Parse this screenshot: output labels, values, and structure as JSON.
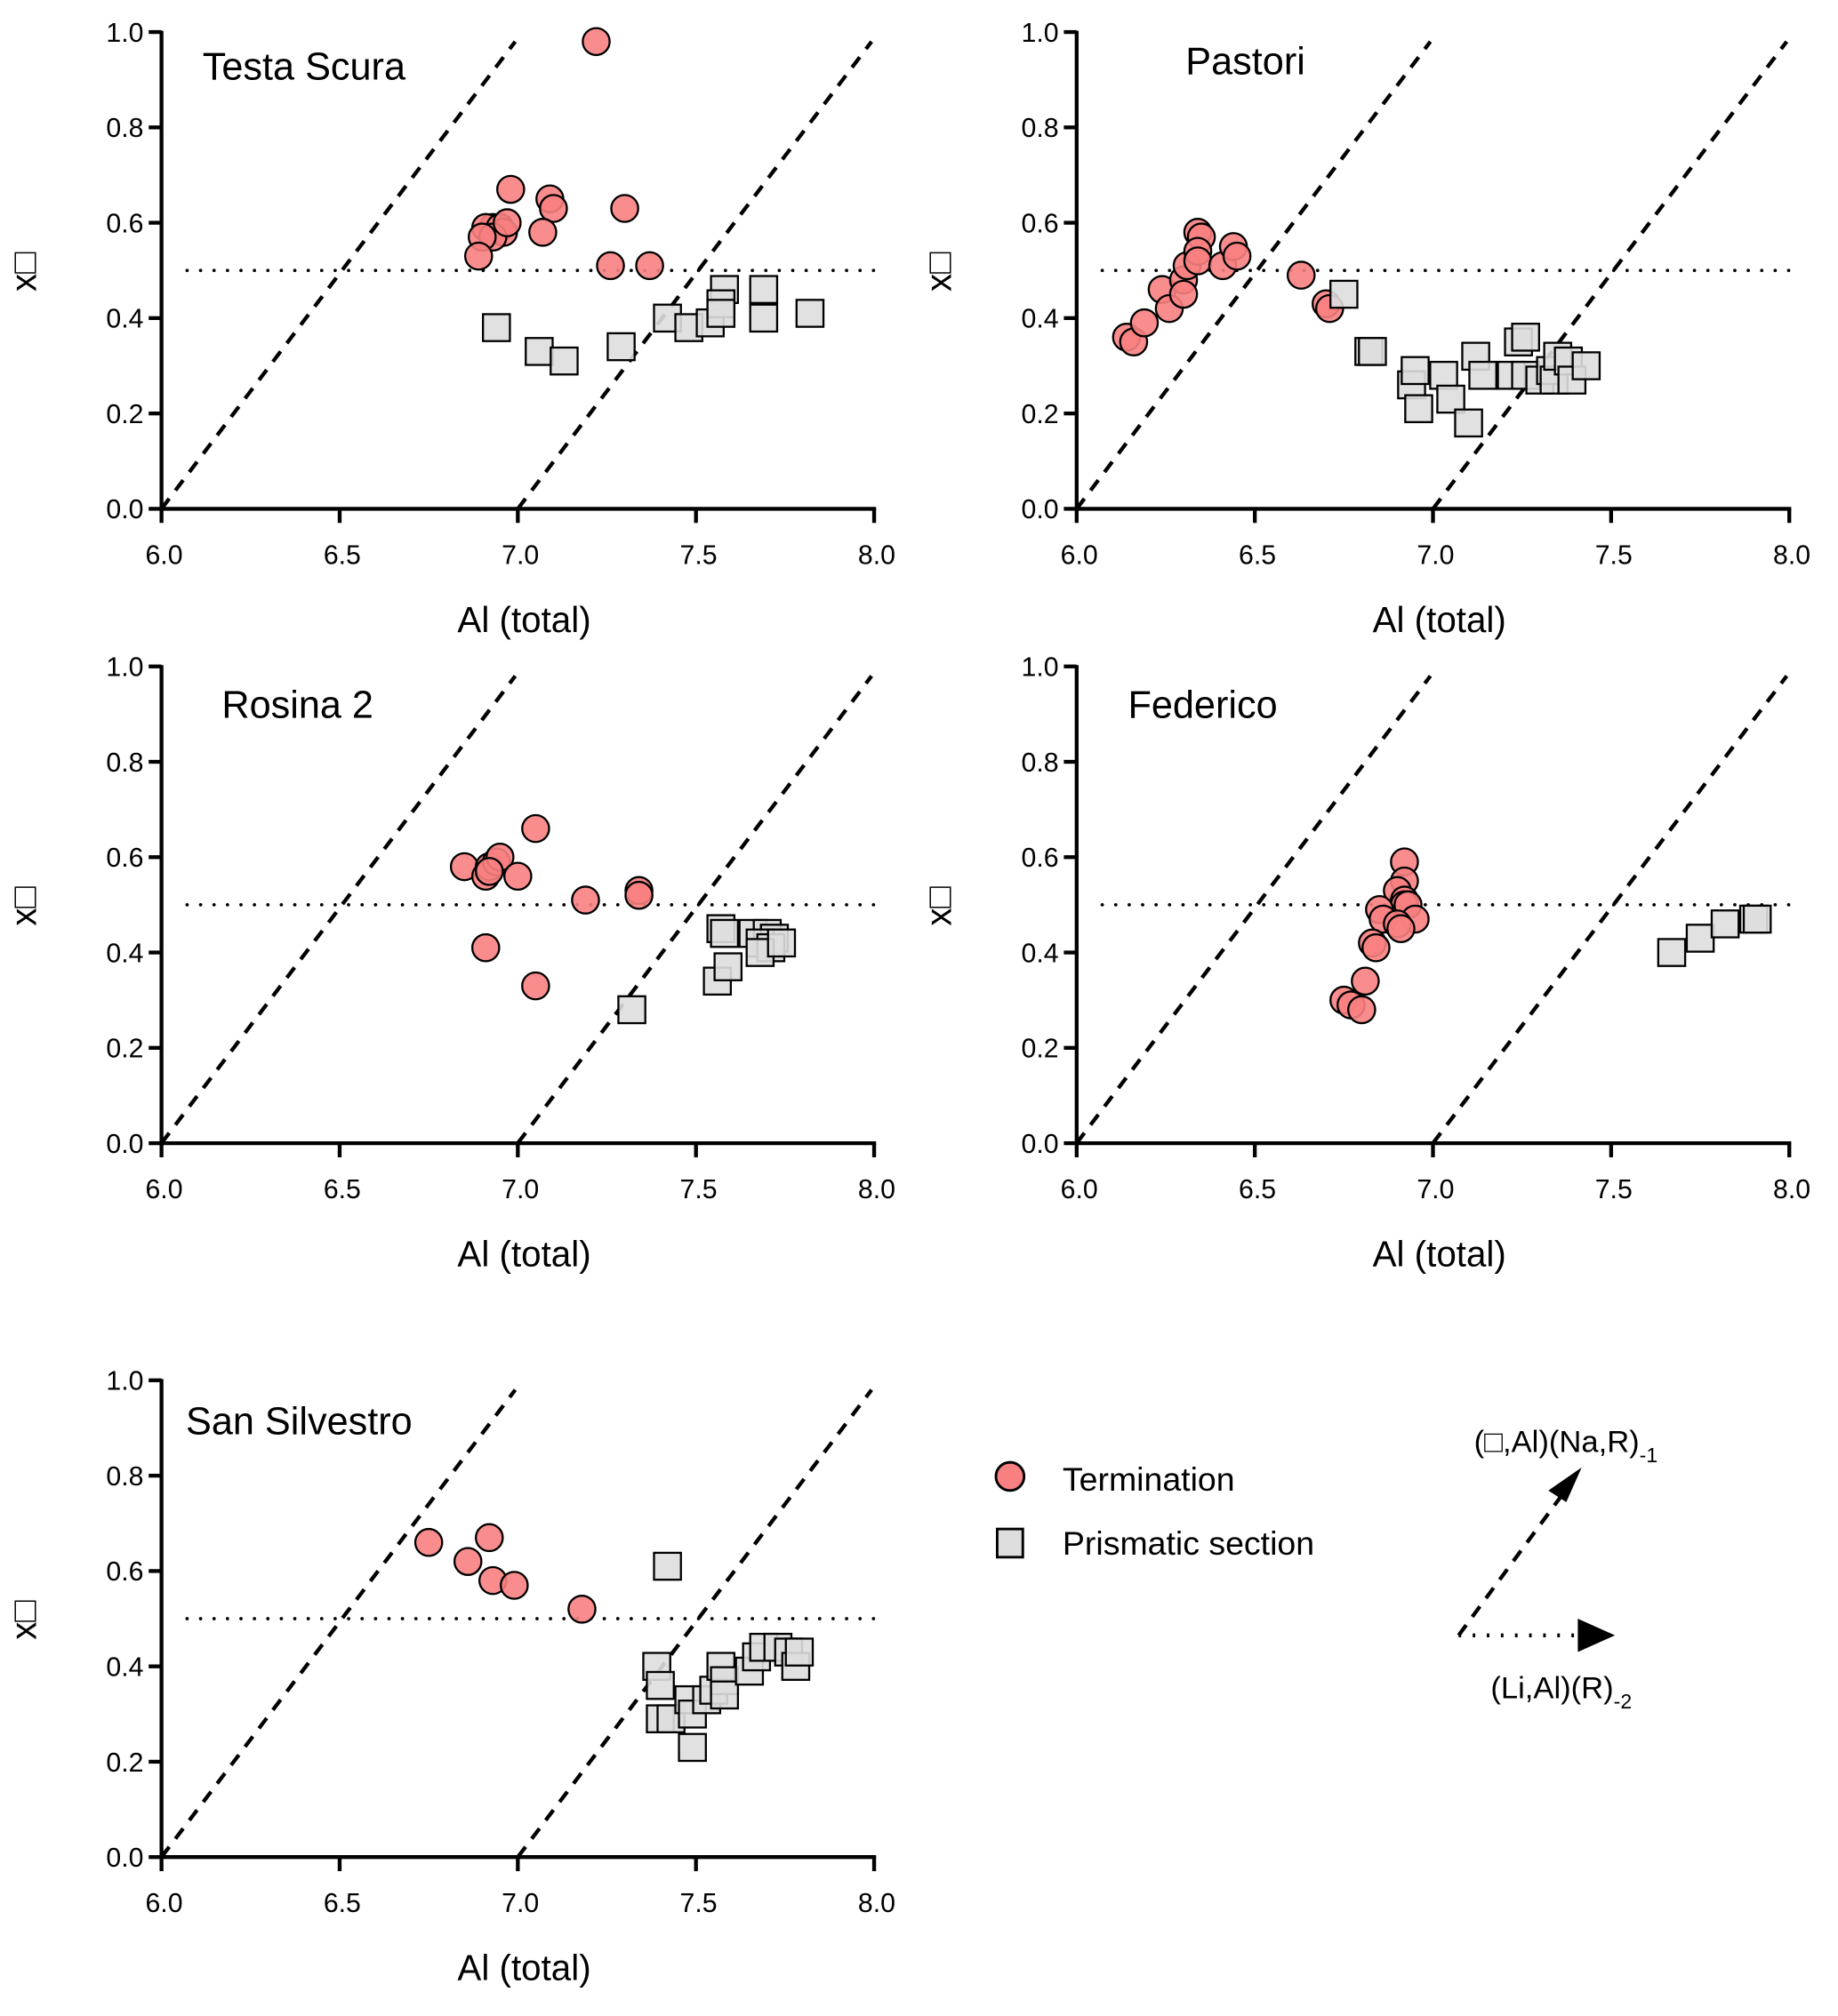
{
  "chart_data": [
    {
      "type": "scatter",
      "title": "Testa Scura",
      "xlabel": "Al (total)",
      "ylabel": "x□",
      "xlim": [
        6.0,
        8.0
      ],
      "ylim": [
        0.0,
        1.0
      ],
      "xticks": [
        "6.0",
        "6.5",
        "7.0",
        "7.5",
        "8.0"
      ],
      "yticks": [
        "0.0",
        "0.2",
        "0.4",
        "0.6",
        "0.8",
        "1.0"
      ],
      "grid": false,
      "series": [
        {
          "name": "Termination",
          "marker": "circle",
          "points": [
            [
              7.22,
              0.98
            ],
            [
              6.98,
              0.67
            ],
            [
              7.09,
              0.65
            ],
            [
              7.3,
              0.63
            ],
            [
              7.1,
              0.63
            ],
            [
              7.07,
              0.58
            ],
            [
              6.93,
              0.59
            ],
            [
              6.91,
              0.59
            ],
            [
              6.95,
              0.59
            ],
            [
              6.96,
              0.58
            ],
            [
              6.93,
              0.57
            ],
            [
              6.9,
              0.57
            ],
            [
              6.89,
              0.53
            ],
            [
              7.26,
              0.51
            ],
            [
              7.37,
              0.51
            ],
            [
              6.97,
              0.6
            ]
          ]
        },
        {
          "name": "Prismatic section",
          "marker": "square",
          "points": [
            [
              6.94,
              0.38
            ],
            [
              7.06,
              0.33
            ],
            [
              7.13,
              0.31
            ],
            [
              7.29,
              0.34
            ],
            [
              7.42,
              0.4
            ],
            [
              7.48,
              0.38
            ],
            [
              7.54,
              0.39
            ],
            [
              7.58,
              0.46
            ],
            [
              7.57,
              0.43
            ],
            [
              7.57,
              0.41
            ],
            [
              7.69,
              0.46
            ],
            [
              7.69,
              0.4
            ],
            [
              7.82,
              0.41
            ]
          ]
        }
      ]
    },
    {
      "type": "scatter",
      "title": "Pastori",
      "xlabel": "Al (total)",
      "ylabel": "x□",
      "xlim": [
        6.0,
        8.0
      ],
      "ylim": [
        0.0,
        1.0
      ],
      "xticks": [
        "6.0",
        "6.5",
        "7.0",
        "7.5",
        "8.0"
      ],
      "yticks": [
        "0.0",
        "0.2",
        "0.4",
        "0.6",
        "0.8",
        "1.0"
      ],
      "grid": false,
      "series": [
        {
          "name": "Termination",
          "marker": "circle",
          "points": [
            [
              6.14,
              0.36
            ],
            [
              6.16,
              0.35
            ],
            [
              6.19,
              0.39
            ],
            [
              6.24,
              0.46
            ],
            [
              6.26,
              0.42
            ],
            [
              6.3,
              0.48
            ],
            [
              6.3,
              0.45
            ],
            [
              6.31,
              0.51
            ],
            [
              6.34,
              0.58
            ],
            [
              6.35,
              0.57
            ],
            [
              6.34,
              0.54
            ],
            [
              6.34,
              0.52
            ],
            [
              6.41,
              0.51
            ],
            [
              6.44,
              0.55
            ],
            [
              6.45,
              0.53
            ],
            [
              6.63,
              0.49
            ],
            [
              6.7,
              0.43
            ],
            [
              6.71,
              0.42
            ]
          ]
        },
        {
          "name": "Prismatic section",
          "marker": "square",
          "points": [
            [
              6.75,
              0.45
            ],
            [
              6.82,
              0.33
            ],
            [
              6.83,
              0.33
            ],
            [
              6.94,
              0.26
            ],
            [
              6.95,
              0.29
            ],
            [
              6.96,
              0.21
            ],
            [
              7.03,
              0.28
            ],
            [
              7.05,
              0.23
            ],
            [
              7.1,
              0.18
            ],
            [
              7.12,
              0.32
            ],
            [
              7.14,
              0.28
            ],
            [
              7.22,
              0.28
            ],
            [
              7.26,
              0.28
            ],
            [
              7.24,
              0.35
            ],
            [
              7.26,
              0.36
            ],
            [
              7.3,
              0.27
            ],
            [
              7.33,
              0.29
            ],
            [
              7.34,
              0.27
            ],
            [
              7.35,
              0.32
            ],
            [
              7.38,
              0.31
            ],
            [
              7.39,
              0.27
            ],
            [
              7.43,
              0.3
            ]
          ]
        }
      ]
    },
    {
      "type": "scatter",
      "title": "Rosina 2",
      "xlabel": "Al (total)",
      "ylabel": "x□",
      "xlim": [
        6.0,
        8.0
      ],
      "ylim": [
        0.0,
        1.0
      ],
      "xticks": [
        "6.0",
        "6.5",
        "7.0",
        "7.5",
        "8.0"
      ],
      "yticks": [
        "0.0",
        "0.2",
        "0.4",
        "0.6",
        "0.8",
        "1.0"
      ],
      "grid": false,
      "series": [
        {
          "name": "Termination",
          "marker": "circle",
          "points": [
            [
              6.85,
              0.58
            ],
            [
              6.91,
              0.56
            ],
            [
              6.92,
              0.58
            ],
            [
              6.94,
              0.59
            ],
            [
              6.95,
              0.6
            ],
            [
              6.92,
              0.57
            ],
            [
              7.0,
              0.56
            ],
            [
              7.05,
              0.66
            ],
            [
              7.19,
              0.51
            ],
            [
              7.34,
              0.53
            ],
            [
              7.34,
              0.52
            ],
            [
              6.91,
              0.41
            ],
            [
              7.05,
              0.33
            ]
          ]
        },
        {
          "name": "Prismatic section",
          "marker": "square",
          "points": [
            [
              7.32,
              0.28
            ],
            [
              7.56,
              0.34
            ],
            [
              7.59,
              0.37
            ],
            [
              7.57,
              0.45
            ],
            [
              7.58,
              0.44
            ],
            [
              7.66,
              0.44
            ],
            [
              7.7,
              0.44
            ],
            [
              7.72,
              0.43
            ],
            [
              7.68,
              0.42
            ],
            [
              7.71,
              0.41
            ],
            [
              7.68,
              0.4
            ],
            [
              7.74,
              0.42
            ]
          ]
        }
      ]
    },
    {
      "type": "scatter",
      "title": "Federico",
      "xlabel": "Al (total)",
      "ylabel": "x□",
      "xlim": [
        6.0,
        8.0
      ],
      "ylim": [
        0.0,
        1.0
      ],
      "xticks": [
        "6.0",
        "6.5",
        "7.0",
        "7.5",
        "8.0"
      ],
      "yticks": [
        "0.0",
        "0.2",
        "0.4",
        "0.6",
        "0.8",
        "1.0"
      ],
      "grid": false,
      "series": [
        {
          "name": "Termination",
          "marker": "circle",
          "points": [
            [
              6.92,
              0.59
            ],
            [
              6.92,
              0.55
            ],
            [
              6.9,
              0.53
            ],
            [
              6.92,
              0.51
            ],
            [
              6.92,
              0.5
            ],
            [
              6.93,
              0.5
            ],
            [
              6.85,
              0.49
            ],
            [
              6.86,
              0.47
            ],
            [
              6.95,
              0.47
            ],
            [
              6.9,
              0.46
            ],
            [
              6.91,
              0.45
            ],
            [
              6.83,
              0.42
            ],
            [
              6.84,
              0.41
            ],
            [
              6.81,
              0.34
            ],
            [
              6.75,
              0.3
            ],
            [
              6.77,
              0.29
            ],
            [
              6.8,
              0.28
            ]
          ]
        },
        {
          "name": "Prismatic section",
          "marker": "square",
          "points": [
            [
              7.67,
              0.4
            ],
            [
              7.75,
              0.43
            ],
            [
              7.82,
              0.46
            ],
            [
              7.9,
              0.47
            ],
            [
              7.91,
              0.47
            ]
          ]
        }
      ]
    },
    {
      "type": "scatter",
      "title": "San Silvestro",
      "xlabel": "Al (total)",
      "ylabel": "x□",
      "xlim": [
        6.0,
        8.0
      ],
      "ylim": [
        0.0,
        1.0
      ],
      "xticks": [
        "6.0",
        "6.5",
        "7.0",
        "7.5",
        "8.0"
      ],
      "yticks": [
        "0.0",
        "0.2",
        "0.4",
        "0.6",
        "0.8",
        "1.0"
      ],
      "grid": false,
      "series": [
        {
          "name": "Termination",
          "marker": "circle",
          "points": [
            [
              6.75,
              0.66
            ],
            [
              6.86,
              0.62
            ],
            [
              6.92,
              0.67
            ],
            [
              6.93,
              0.58
            ],
            [
              6.99,
              0.57
            ],
            [
              7.18,
              0.52
            ]
          ]
        },
        {
          "name": "Prismatic section",
          "marker": "square",
          "points": [
            [
              7.42,
              0.61
            ],
            [
              7.39,
              0.4
            ],
            [
              7.4,
              0.36
            ],
            [
              7.4,
              0.29
            ],
            [
              7.43,
              0.29
            ],
            [
              7.48,
              0.33
            ],
            [
              7.49,
              0.3
            ],
            [
              7.49,
              0.23
            ],
            [
              7.53,
              0.33
            ],
            [
              7.55,
              0.35
            ],
            [
              7.57,
              0.4
            ],
            [
              7.58,
              0.37
            ],
            [
              7.58,
              0.34
            ],
            [
              7.65,
              0.39
            ],
            [
              7.67,
              0.42
            ],
            [
              7.69,
              0.44
            ],
            [
              7.73,
              0.44
            ],
            [
              7.76,
              0.43
            ],
            [
              7.78,
              0.4
            ],
            [
              7.79,
              0.43
            ]
          ]
        }
      ]
    }
  ],
  "reference_lines": {
    "horizontal_dotted_y": 0.5,
    "dashed_lines": [
      {
        "from": [
          6.0,
          0.0
        ],
        "to": [
          7.0,
          1.0
        ]
      },
      {
        "from": [
          7.0,
          0.0
        ],
        "to": [
          8.0,
          1.0
        ]
      }
    ]
  },
  "legend": {
    "items": [
      {
        "label": "Termination",
        "marker": "circle",
        "color": "#f88080"
      },
      {
        "label": "Prismatic section",
        "marker": "square",
        "color": "#dedede"
      }
    ]
  },
  "vectors": {
    "dashed_label": "(□,Al)(Na,R)",
    "dashed_sub": "-1",
    "dotted_label": "(Li,Al)(R)",
    "dotted_sub": "-2"
  },
  "colors": {
    "termination_fill": "#f88080",
    "termination_stroke": "#000000",
    "prismatic_fill": "#dedede",
    "prismatic_stroke": "#000000"
  }
}
